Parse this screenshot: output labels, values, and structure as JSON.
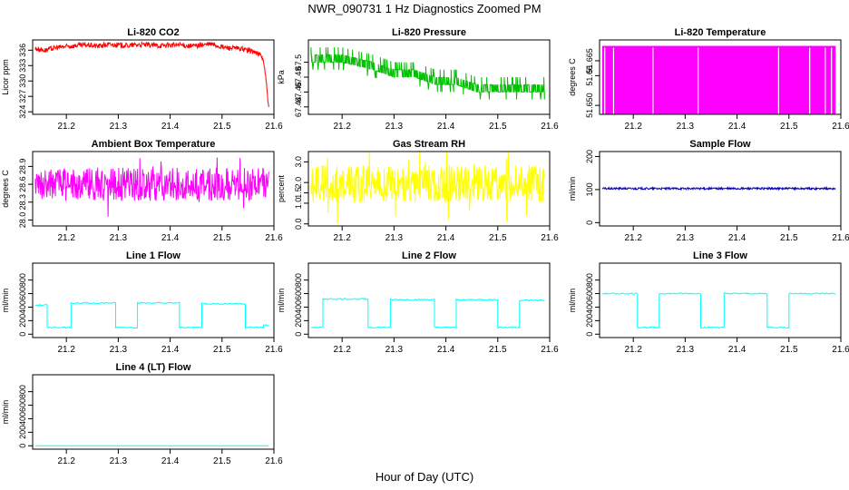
{
  "figure": {
    "title": "NWR_090731  1 Hz Diagnostics Zoomed PM",
    "xlabel": "Hour of Day (UTC)"
  },
  "chart_data": [
    {
      "id": "co2",
      "type": "line",
      "title": "Li-820 CO2",
      "ylabel": "Licor ppm",
      "color": "#ff0000",
      "xlim": [
        21.135,
        21.6
      ],
      "xticks": [
        21.2,
        21.3,
        21.4,
        21.5,
        21.6
      ],
      "xtick_labels": [
        "21.2",
        "21.3",
        "21.4",
        "21.5",
        "21.6"
      ],
      "ylim": [
        323.5,
        338
      ],
      "yticks": [
        324,
        327,
        330,
        333,
        336
      ],
      "ytick_labels": [
        "324",
        "327",
        "330",
        "333",
        "336"
      ],
      "x": [
        21.14,
        21.16,
        21.18,
        21.2,
        21.22,
        21.24,
        21.26,
        21.28,
        21.3,
        21.32,
        21.34,
        21.36,
        21.38,
        21.4,
        21.42,
        21.44,
        21.46,
        21.48,
        21.5,
        21.52,
        21.54,
        21.56,
        21.575,
        21.58,
        21.585,
        21.59
      ],
      "y": [
        336.3,
        336.0,
        336.5,
        336.7,
        336.9,
        337.0,
        336.8,
        337.1,
        337.0,
        336.9,
        337.1,
        337.0,
        336.9,
        337.0,
        337.0,
        336.8,
        337.0,
        337.2,
        336.6,
        336.4,
        336.2,
        335.8,
        335.0,
        334.0,
        330.0,
        324.5
      ],
      "noise": 0.5
    },
    {
      "id": "pressure",
      "type": "step",
      "title": "Li-820 Pressure",
      "ylabel": "kPa",
      "color": "#00c000",
      "xlim": [
        21.135,
        21.6
      ],
      "xticks": [
        21.2,
        21.3,
        21.4,
        21.5,
        21.6
      ],
      "xtick_labels": [
        "21.2",
        "21.3",
        "21.4",
        "21.5",
        "21.6"
      ],
      "ylim": [
        67.43,
        67.53
      ],
      "yticks": [
        67.44,
        67.46,
        67.48,
        67.5
      ],
      "ytick_labels": [
        "67.44",
        "67.46",
        "67.48",
        "67.5"
      ],
      "x": [
        21.14,
        21.2,
        21.26,
        21.3,
        21.34,
        21.38,
        21.42,
        21.46,
        21.5,
        21.55,
        21.59
      ],
      "y": [
        67.5,
        67.5,
        67.49,
        67.48,
        67.48,
        67.47,
        67.47,
        67.46,
        67.46,
        67.46,
        67.46
      ],
      "levels": [
        67.45,
        67.46,
        67.47,
        67.48,
        67.49,
        67.5,
        67.51
      ]
    },
    {
      "id": "licor_temp",
      "type": "area",
      "title": "Li-820 Temperature",
      "ylabel": "degrees C",
      "color": "#ff00ff",
      "xlim": [
        21.135,
        21.6
      ],
      "xticks": [
        21.2,
        21.3,
        21.4,
        21.5,
        21.6
      ],
      "xtick_labels": [
        "21.2",
        "21.3",
        "21.4",
        "21.5",
        "21.6"
      ],
      "ylim": [
        51.647,
        51.672
      ],
      "yticks": [
        51.65,
        51.66,
        51.665
      ],
      "ytick_labels": [
        "51.650",
        "51.66",
        "51.665"
      ],
      "x": [
        21.14,
        21.59
      ],
      "y": [
        51.67,
        51.67
      ],
      "gaps": [
        21.145,
        21.162,
        21.238,
        21.325,
        21.48,
        21.54,
        21.57,
        21.582
      ]
    },
    {
      "id": "box_temp",
      "type": "line",
      "title": "Ambient Box Temperature",
      "ylabel": "degrees C",
      "color": "#ff00ff",
      "xlim": [
        21.135,
        21.6
      ],
      "xticks": [
        21.2,
        21.3,
        21.4,
        21.5,
        21.6
      ],
      "xtick_labels": [
        "21.2",
        "21.3",
        "21.4",
        "21.5",
        "21.6"
      ],
      "ylim": [
        27.9,
        29.15
      ],
      "yticks": [
        28.0,
        28.3,
        28.6,
        28.9
      ],
      "ytick_labels": [
        "28.0",
        "28.3",
        "28.6",
        "28.9"
      ],
      "x": [
        21.14,
        21.59
      ],
      "y": [
        28.6,
        28.6
      ],
      "noise": 0.28
    },
    {
      "id": "rh",
      "type": "line",
      "title": "Gas Stream RH",
      "ylabel": "percent",
      "color": "#ffff00",
      "xlim": [
        21.135,
        21.6
      ],
      "xticks": [
        21.2,
        21.3,
        21.4,
        21.5,
        21.6
      ],
      "xtick_labels": [
        "21.2",
        "21.3",
        "21.4",
        "21.5",
        "21.6"
      ],
      "ylim": [
        -0.1,
        3.5
      ],
      "yticks": [
        0.0,
        1.0,
        1.5,
        2.0,
        3.0
      ],
      "ytick_labels": [
        "0.0",
        "1.0",
        "1.5",
        "2.0",
        "3.0"
      ],
      "x": [
        21.14,
        21.59
      ],
      "y": [
        1.95,
        1.95
      ],
      "noise": 0.9
    },
    {
      "id": "sample_flow",
      "type": "line",
      "title": "Sample Flow",
      "ylabel": "ml/min",
      "color": "#0000cc",
      "xlim": [
        21.135,
        21.6
      ],
      "xticks": [
        21.2,
        21.3,
        21.4,
        21.5,
        21.6
      ],
      "xtick_labels": [
        "21.2",
        "21.3",
        "21.4",
        "21.5",
        "21.6"
      ],
      "ylim": [
        -10,
        215
      ],
      "yticks": [
        0,
        100,
        200
      ],
      "ytick_labels": [
        "0",
        "100",
        "200"
      ],
      "x": [
        21.14,
        21.59
      ],
      "y": [
        103,
        103
      ],
      "noise": 3
    },
    {
      "id": "line1_flow",
      "type": "step",
      "title": "Line 1 Flow",
      "ylabel": "ml/min",
      "color": "#00ffff",
      "xlim": [
        21.135,
        21.6
      ],
      "xticks": [
        21.2,
        21.3,
        21.4,
        21.5,
        21.6
      ],
      "xtick_labels": [
        "21.2",
        "21.3",
        "21.4",
        "21.5",
        "21.6"
      ],
      "ylim": [
        -50,
        1050
      ],
      "yticks": [
        0,
        200,
        400,
        600,
        800
      ],
      "ytick_labels": [
        "0",
        "200",
        "400",
        "600",
        "800"
      ],
      "x": [
        21.14,
        21.163,
        21.163,
        21.209,
        21.209,
        21.295,
        21.295,
        21.337,
        21.337,
        21.418,
        21.418,
        21.461,
        21.461,
        21.545,
        21.545,
        21.58,
        21.58,
        21.59
      ],
      "y": [
        430,
        430,
        100,
        100,
        460,
        460,
        100,
        100,
        460,
        460,
        100,
        100,
        450,
        450,
        100,
        100,
        130,
        130
      ],
      "noise": 10
    },
    {
      "id": "line2_flow",
      "type": "step",
      "title": "Line 2 Flow",
      "ylabel": "ml/min",
      "color": "#00ffff",
      "xlim": [
        21.135,
        21.6
      ],
      "xticks": [
        21.2,
        21.3,
        21.4,
        21.5,
        21.6
      ],
      "xtick_labels": [
        "21.2",
        "21.3",
        "21.4",
        "21.5",
        "21.6"
      ],
      "ylim": [
        -50,
        1050
      ],
      "yticks": [
        0,
        200,
        400,
        600,
        800
      ],
      "ytick_labels": [
        "0",
        "200",
        "400",
        "600",
        "800"
      ],
      "x": [
        21.14,
        21.163,
        21.163,
        21.25,
        21.25,
        21.293,
        21.293,
        21.378,
        21.378,
        21.42,
        21.42,
        21.5,
        21.5,
        21.542,
        21.542,
        21.59
      ],
      "y": [
        100,
        100,
        520,
        520,
        100,
        100,
        510,
        510,
        100,
        100,
        510,
        510,
        100,
        100,
        500,
        500
      ],
      "noise": 10
    },
    {
      "id": "line3_flow",
      "type": "step",
      "title": "Line 3 Flow",
      "ylabel": "ml/min",
      "color": "#00ffff",
      "xlim": [
        21.135,
        21.6
      ],
      "xticks": [
        21.2,
        21.3,
        21.4,
        21.5,
        21.6
      ],
      "xtick_labels": [
        "21.2",
        "21.3",
        "21.4",
        "21.5",
        "21.6"
      ],
      "ylim": [
        -50,
        1050
      ],
      "yticks": [
        0,
        200,
        400,
        600,
        800
      ],
      "ytick_labels": [
        "0",
        "200",
        "400",
        "600",
        "800"
      ],
      "x": [
        21.14,
        21.208,
        21.208,
        21.25,
        21.25,
        21.33,
        21.33,
        21.375,
        21.375,
        21.458,
        21.458,
        21.5,
        21.5,
        21.59
      ],
      "y": [
        600,
        600,
        100,
        100,
        600,
        600,
        100,
        100,
        600,
        600,
        100,
        100,
        600,
        600
      ],
      "noise": 10
    },
    {
      "id": "line4_flow",
      "type": "line",
      "title": "Line 4 (LT) Flow",
      "ylabel": "ml/min",
      "color": "#00ffff",
      "xlim": [
        21.135,
        21.6
      ],
      "xticks": [
        21.2,
        21.3,
        21.4,
        21.5,
        21.6
      ],
      "xtick_labels": [
        "21.2",
        "21.3",
        "21.4",
        "21.5",
        "21.6"
      ],
      "ylim": [
        -50,
        1050
      ],
      "yticks": [
        0,
        200,
        400,
        600,
        800
      ],
      "ytick_labels": [
        "0",
        "200",
        "400",
        "600",
        "800"
      ],
      "x": [
        21.14,
        21.59
      ],
      "y": [
        0,
        0
      ],
      "noise": 0
    }
  ]
}
